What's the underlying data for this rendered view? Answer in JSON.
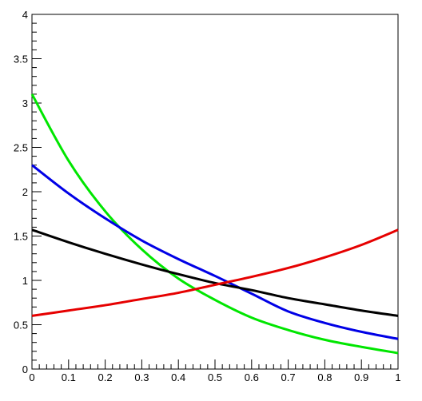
{
  "chart_data": {
    "type": "line",
    "title": "",
    "xlabel": "",
    "ylabel": "",
    "xlim": [
      0,
      1
    ],
    "ylim": [
      0,
      4
    ],
    "grid": false,
    "legend": "none",
    "x_ticks": [
      "0",
      "0.1",
      "0.2",
      "0.3",
      "0.4",
      "0.5",
      "0.6",
      "0.7",
      "0.8",
      "0.9",
      "1"
    ],
    "y_ticks": [
      "0",
      "0.5",
      "1",
      "1.5",
      "2",
      "2.5",
      "3",
      "3.5",
      "4"
    ],
    "x": [
      0,
      0.1,
      0.2,
      0.3,
      0.4,
      0.5,
      0.6,
      0.7,
      0.8,
      0.9,
      1.0
    ],
    "series": [
      {
        "color": "#00e600",
        "values": [
          3.1,
          2.35,
          1.78,
          1.35,
          1.02,
          0.78,
          0.58,
          0.44,
          0.33,
          0.25,
          0.18
        ]
      },
      {
        "color": "#0000e6",
        "values": [
          2.3,
          1.98,
          1.7,
          1.45,
          1.24,
          1.05,
          0.85,
          0.65,
          0.52,
          0.42,
          0.34
        ]
      },
      {
        "color": "#000000",
        "values": [
          1.57,
          1.43,
          1.3,
          1.18,
          1.07,
          0.97,
          0.89,
          0.8,
          0.73,
          0.66,
          0.6
        ]
      },
      {
        "color": "#e60000",
        "values": [
          0.6,
          0.66,
          0.72,
          0.79,
          0.86,
          0.95,
          1.04,
          1.14,
          1.26,
          1.4,
          1.57
        ]
      }
    ]
  }
}
